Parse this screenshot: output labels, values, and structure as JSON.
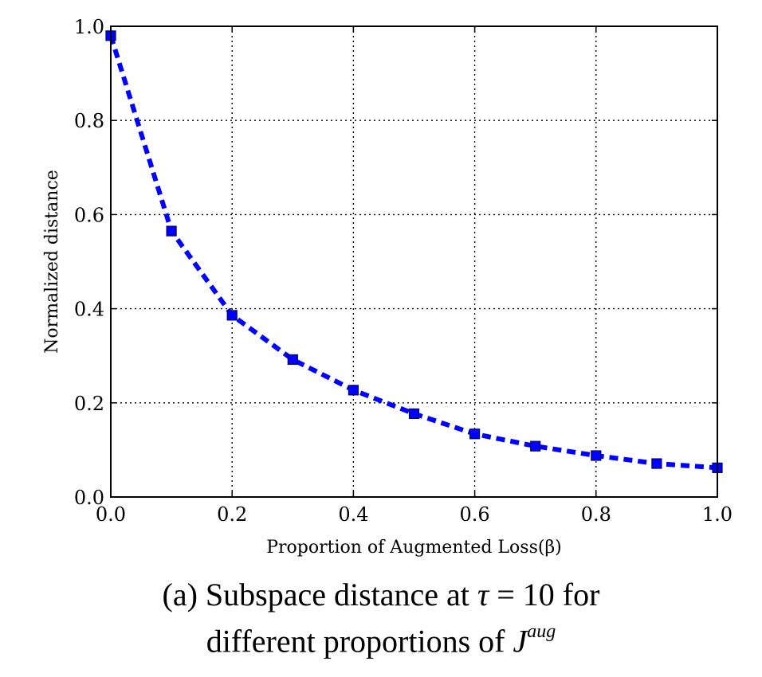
{
  "chart_data": {
    "type": "line",
    "x": [
      0.0,
      0.1,
      0.2,
      0.3,
      0.4,
      0.5,
      0.6,
      0.7,
      0.8,
      0.9,
      1.0
    ],
    "series": [
      {
        "values": [
          0.98,
          0.565,
          0.386,
          0.292,
          0.227,
          0.177,
          0.134,
          0.108,
          0.088,
          0.071,
          0.062
        ],
        "color": "#0000ff",
        "line_style": "dashed",
        "marker": "square"
      }
    ],
    "xlabel": "Proportion of Augmented Loss(β)",
    "ylabel": "Normalized distance",
    "xlim": [
      0.0,
      1.0
    ],
    "ylim": [
      0.0,
      1.0
    ],
    "xticks": [
      "0.0",
      "0.2",
      "0.4",
      "0.6",
      "0.8",
      "1.0"
    ],
    "yticks": [
      "0.0",
      "0.2",
      "0.4",
      "0.6",
      "0.8",
      "1.0"
    ],
    "grid": true
  },
  "caption": {
    "line1_prefix": "(a) Subspace distance at ",
    "tau": "τ",
    "equals": " = 10 for",
    "line2_prefix": "different proportions of ",
    "J": "J",
    "aug": "aug"
  }
}
